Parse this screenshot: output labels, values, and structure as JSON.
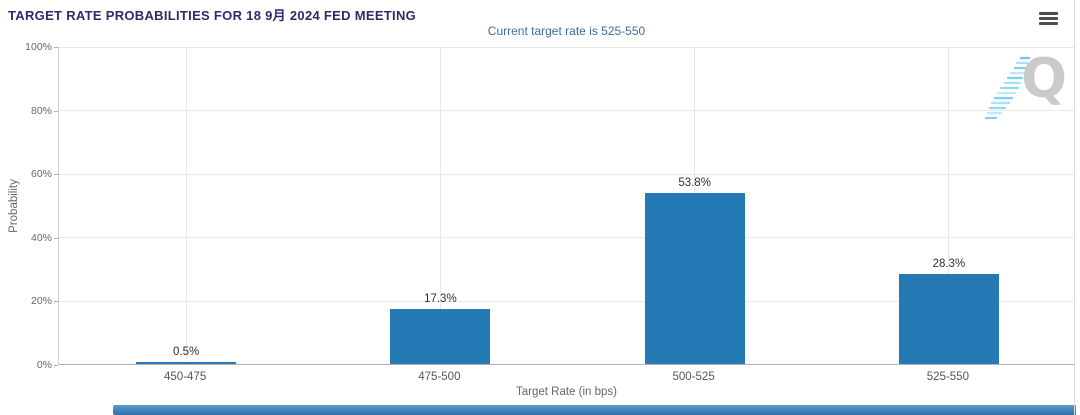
{
  "header": {
    "title": "TARGET RATE PROBABILITIES FOR 18 9月 2024 FED MEETING",
    "subtitle": "Current target rate is 525-550"
  },
  "menu": {
    "icon": "hamburger-menu-icon"
  },
  "watermark": {
    "letter": "Q"
  },
  "chart_data": {
    "type": "bar",
    "title": "TARGET RATE PROBABILITIES FOR 18 9月 2024 FED MEETING",
    "subtitle": "Current target rate is 525-550",
    "categories": [
      "450-475",
      "475-500",
      "500-525",
      "525-550"
    ],
    "values": [
      0.5,
      17.3,
      53.8,
      28.3
    ],
    "value_labels": [
      "0.5%",
      "17.3%",
      "53.8%",
      "28.3%"
    ],
    "xlabel": "Target Rate (in bps)",
    "ylabel": "Probability",
    "ylim": [
      0,
      100
    ],
    "yticks": [
      0,
      20,
      40,
      60,
      80,
      100
    ],
    "ytick_labels": [
      "0%",
      "20%",
      "40%",
      "60%",
      "80%",
      "100%"
    ],
    "grid": true,
    "legend": false,
    "bar_color": "#2579b5"
  },
  "colors": {
    "title_text": "#2b2c6a",
    "subtitle_text": "#3a6d9e",
    "bar": "#2579b5",
    "gridline": "#e9e9e9",
    "axis": "#b3b3b3",
    "bottom_strip": "#3d7fba",
    "watermark_gray": "#cacaca",
    "watermark_blue": "#7ed0ef"
  }
}
